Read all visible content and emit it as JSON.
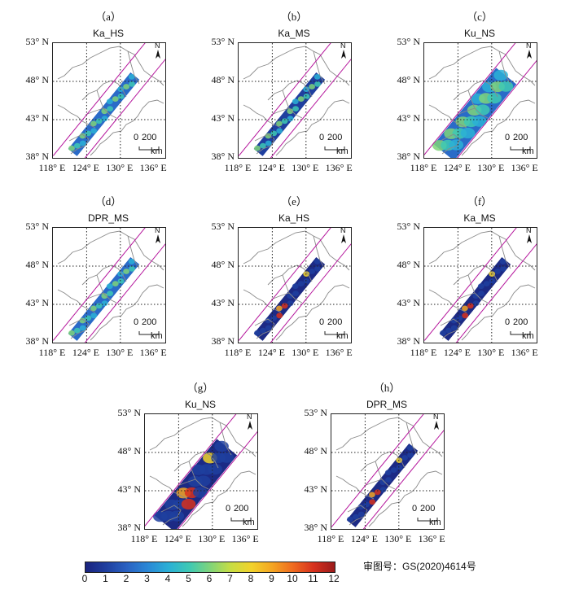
{
  "panels": [
    {
      "letter": "（a）",
      "title": "Ka_HS",
      "kind": "narrow",
      "field": "low"
    },
    {
      "letter": "（b）",
      "title": "Ka_MS",
      "kind": "narrow",
      "field": "low-dark"
    },
    {
      "letter": "（c）",
      "title": "Ku_NS",
      "kind": "wide",
      "field": "low"
    },
    {
      "letter": "（d）",
      "title": "DPR_MS",
      "kind": "narrow",
      "field": "low"
    },
    {
      "letter": "（e）",
      "title": "Ka_HS",
      "kind": "narrow",
      "field": "high"
    },
    {
      "letter": "（f）",
      "title": "Ka_MS",
      "kind": "narrow",
      "field": "high"
    },
    {
      "letter": "（g）",
      "title": "Ku_NS",
      "kind": "wide",
      "field": "high"
    },
    {
      "letter": "（h）",
      "title": "DPR_MS",
      "kind": "narrow",
      "field": "high"
    }
  ],
  "axes": {
    "lat_labels": [
      "53° N",
      "48° N",
      "43° N",
      "38° N"
    ],
    "lon_labels": [
      "118° E",
      "124° E",
      "130° E",
      "136° E"
    ]
  },
  "scale_bar": {
    "value": "200",
    "zero": "0",
    "unit": "km"
  },
  "north_label": "N",
  "colorbar": {
    "ticks": [
      "0",
      "1",
      "2",
      "3",
      "4",
      "5",
      "6",
      "7",
      "8",
      "9",
      "10",
      "11",
      "12"
    ],
    "colors": [
      "#1a237e",
      "#1f3f9f",
      "#2a62c2",
      "#2b88d6",
      "#2bb0d6",
      "#3ec9b4",
      "#7fd47a",
      "#c7dd43",
      "#f2d22b",
      "#f4a523",
      "#ef6a1f",
      "#d6301d",
      "#9b1b1b"
    ]
  },
  "approval_number": "审图号：GS(2020)4614号"
}
